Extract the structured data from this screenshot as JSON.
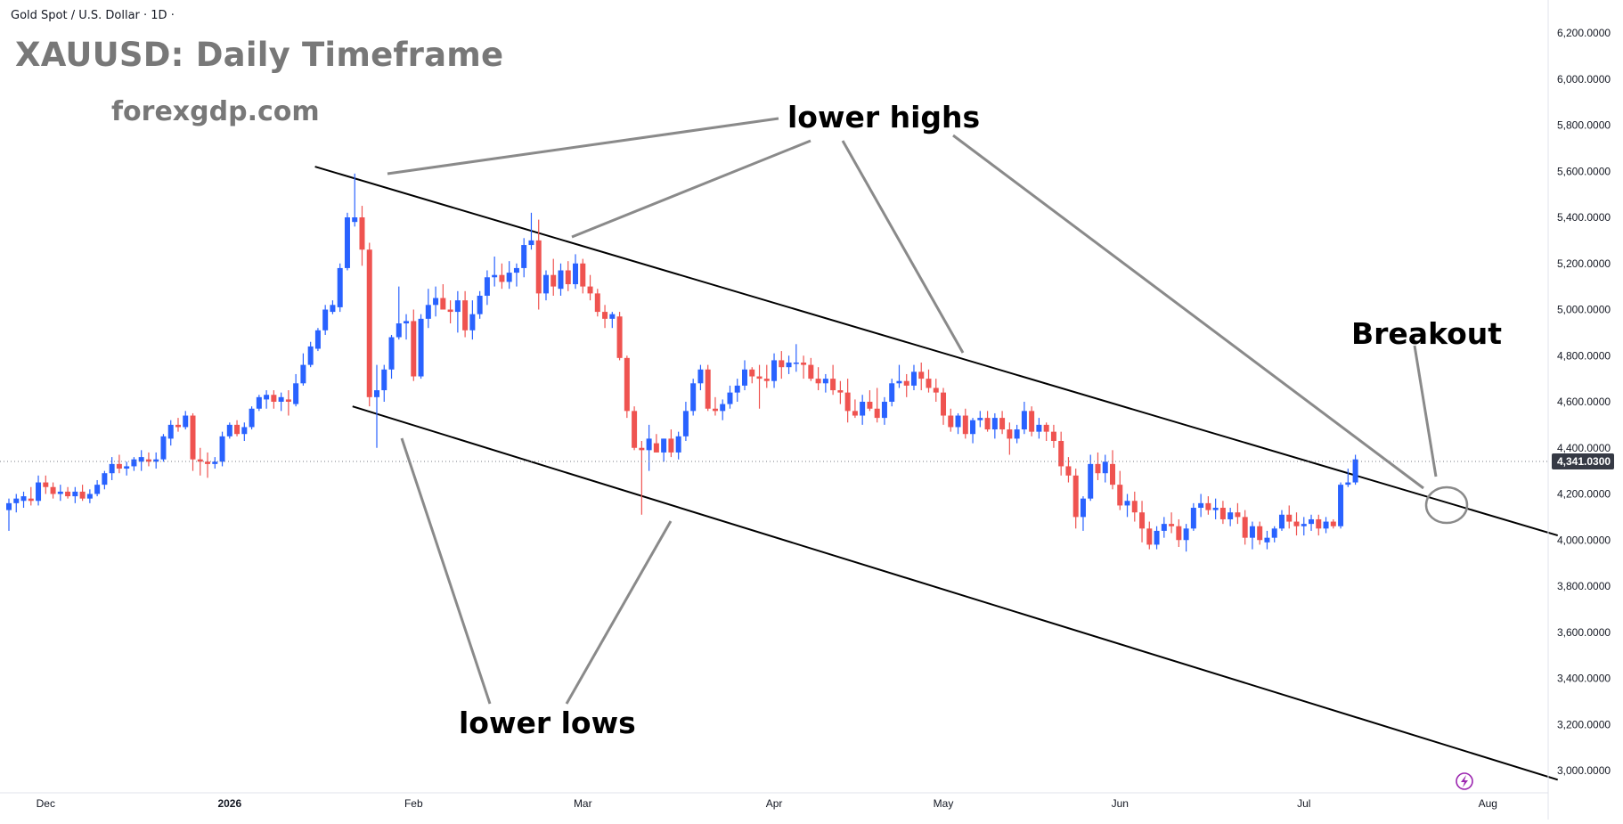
{
  "header": {
    "symbol": "Gold Spot / U.S. Dollar · 1D ·",
    "title": "XAUUSD: Daily Timeframe",
    "site": "forexgdp.com"
  },
  "annotations": {
    "lower_highs": "lower highs",
    "lower_lows": "lower lows",
    "breakout": "Breakout"
  },
  "colors": {
    "up": "#2962ff",
    "down": "#ef5350",
    "trendline": "#000000",
    "arrow": "#8a8a8a",
    "axis_text": "#131722",
    "price_label_bg": "#363a45"
  },
  "chart_data": {
    "type": "candlestick",
    "title": "XAUUSD: Daily Timeframe",
    "ylim": [
      2900,
      6300
    ],
    "y_ticks": [
      "6,200.0000",
      "6,000.0000",
      "5,800.0000",
      "5,600.0000",
      "5,400.0000",
      "5,200.0000",
      "5,000.0000",
      "4,800.0000",
      "4,600.0000",
      "4,400.0000",
      "4,200.0000",
      "4,000.0000",
      "3,800.0000",
      "3,600.0000",
      "3,400.0000",
      "3,200.0000",
      "3,000.0000"
    ],
    "y_tick_values": [
      6200,
      6000,
      5800,
      5600,
      5400,
      5200,
      5000,
      4800,
      4600,
      4400,
      4200,
      4000,
      3800,
      3600,
      3400,
      3200,
      3000
    ],
    "x_ticks": [
      {
        "label": "Dec",
        "index": 5
      },
      {
        "label": "2026",
        "index": 30
      },
      {
        "label": "Feb",
        "index": 55
      },
      {
        "label": "Mar",
        "index": 78
      },
      {
        "label": "Apr",
        "index": 104
      },
      {
        "label": "May",
        "index": 127
      },
      {
        "label": "Jun",
        "index": 151
      },
      {
        "label": "Jul",
        "index": 176
      },
      {
        "label": "Aug",
        "index": 201
      }
    ],
    "last_price": 4341.03,
    "last_price_label": "4,341.0300",
    "grid": false,
    "candles": [
      [
        4130,
        4180,
        4040,
        4160
      ],
      [
        4160,
        4200,
        4120,
        4180
      ],
      [
        4170,
        4210,
        4140,
        4190
      ],
      [
        4180,
        4230,
        4150,
        4170
      ],
      [
        4170,
        4280,
        4150,
        4250
      ],
      [
        4250,
        4280,
        4200,
        4230
      ],
      [
        4230,
        4250,
        4180,
        4200
      ],
      [
        4200,
        4240,
        4170,
        4210
      ],
      [
        4210,
        4230,
        4180,
        4190
      ],
      [
        4190,
        4230,
        4160,
        4210
      ],
      [
        4210,
        4240,
        4170,
        4180
      ],
      [
        4180,
        4220,
        4160,
        4200
      ],
      [
        4200,
        4260,
        4190,
        4240
      ],
      [
        4240,
        4300,
        4220,
        4290
      ],
      [
        4290,
        4360,
        4260,
        4330
      ],
      [
        4330,
        4370,
        4290,
        4310
      ],
      [
        4310,
        4340,
        4280,
        4320
      ],
      [
        4320,
        4360,
        4300,
        4350
      ],
      [
        4340,
        4390,
        4300,
        4360
      ],
      [
        4350,
        4380,
        4320,
        4340
      ],
      [
        4340,
        4380,
        4310,
        4350
      ],
      [
        4350,
        4460,
        4340,
        4450
      ],
      [
        4440,
        4520,
        4410,
        4500
      ],
      [
        4500,
        4530,
        4470,
        4490
      ],
      [
        4490,
        4560,
        4480,
        4540
      ],
      [
        4540,
        4550,
        4300,
        4350
      ],
      [
        4350,
        4400,
        4280,
        4340
      ],
      [
        4340,
        4380,
        4270,
        4330
      ],
      [
        4330,
        4360,
        4310,
        4340
      ],
      [
        4340,
        4470,
        4320,
        4450
      ],
      [
        4450,
        4510,
        4440,
        4500
      ],
      [
        4500,
        4520,
        4450,
        4460
      ],
      [
        4460,
        4510,
        4430,
        4490
      ],
      [
        4490,
        4580,
        4480,
        4570
      ],
      [
        4570,
        4630,
        4560,
        4620
      ],
      [
        4610,
        4650,
        4570,
        4630
      ],
      [
        4630,
        4650,
        4570,
        4600
      ],
      [
        4600,
        4640,
        4560,
        4620
      ],
      [
        4610,
        4650,
        4540,
        4600
      ],
      [
        4590,
        4720,
        4580,
        4680
      ],
      [
        4680,
        4810,
        4670,
        4760
      ],
      [
        4760,
        4860,
        4750,
        4840
      ],
      [
        4830,
        4920,
        4820,
        4910
      ],
      [
        4910,
        5020,
        4890,
        5000
      ],
      [
        4990,
        5040,
        4980,
        5020
      ],
      [
        5010,
        5200,
        4990,
        5180
      ],
      [
        5180,
        5420,
        5170,
        5400
      ],
      [
        5380,
        5590,
        5360,
        5400
      ],
      [
        5400,
        5450,
        5190,
        5260
      ],
      [
        5260,
        5290,
        4580,
        4620
      ],
      [
        4620,
        4760,
        4400,
        4650
      ],
      [
        4650,
        4760,
        4600,
        4740
      ],
      [
        4740,
        4890,
        4700,
        4880
      ],
      [
        4880,
        5100,
        4870,
        4940
      ],
      [
        4940,
        4980,
        4870,
        4950
      ],
      [
        4950,
        5000,
        4690,
        4710
      ],
      [
        4710,
        4980,
        4700,
        4960
      ],
      [
        4960,
        5090,
        4920,
        5020
      ],
      [
        5020,
        5100,
        4970,
        5050
      ],
      [
        5050,
        5110,
        5010,
        5000
      ],
      [
        5000,
        5040,
        4940,
        4990
      ],
      [
        4990,
        5080,
        4900,
        5040
      ],
      [
        5040,
        5080,
        4880,
        4910
      ],
      [
        4910,
        5040,
        4870,
        4980
      ],
      [
        4980,
        5080,
        4960,
        5060
      ],
      [
        5060,
        5170,
        5020,
        5140
      ],
      [
        5140,
        5230,
        5100,
        5150
      ],
      [
        5150,
        5200,
        5090,
        5120
      ],
      [
        5120,
        5210,
        5090,
        5160
      ],
      [
        5160,
        5200,
        5100,
        5180
      ],
      [
        5180,
        5310,
        5140,
        5280
      ],
      [
        5280,
        5420,
        5260,
        5300
      ],
      [
        5300,
        5390,
        5000,
        5070
      ],
      [
        5070,
        5170,
        5040,
        5150
      ],
      [
        5150,
        5220,
        5060,
        5100
      ],
      [
        5090,
        5200,
        5060,
        5170
      ],
      [
        5170,
        5210,
        5080,
        5110
      ],
      [
        5110,
        5240,
        5090,
        5200
      ],
      [
        5200,
        5220,
        5070,
        5100
      ],
      [
        5100,
        5150,
        5040,
        5070
      ],
      [
        5070,
        5090,
        4970,
        4990
      ],
      [
        4990,
        5020,
        4920,
        4960
      ],
      [
        4960,
        4990,
        4920,
        4980
      ],
      [
        4970,
        4990,
        4780,
        4790
      ],
      [
        4790,
        4800,
        4530,
        4560
      ],
      [
        4560,
        4580,
        4390,
        4400
      ],
      [
        4400,
        4430,
        4110,
        4390
      ],
      [
        4390,
        4500,
        4300,
        4440
      ],
      [
        4420,
        4460,
        4380,
        4380
      ],
      [
        4380,
        4440,
        4340,
        4440
      ],
      [
        4440,
        4480,
        4360,
        4380
      ],
      [
        4380,
        4470,
        4350,
        4450
      ],
      [
        4450,
        4600,
        4430,
        4560
      ],
      [
        4560,
        4700,
        4540,
        4680
      ],
      [
        4680,
        4760,
        4650,
        4740
      ],
      [
        4740,
        4760,
        4560,
        4570
      ],
      [
        4570,
        4620,
        4540,
        4560
      ],
      [
        4560,
        4610,
        4520,
        4590
      ],
      [
        4590,
        4670,
        4570,
        4640
      ],
      [
        4640,
        4700,
        4600,
        4670
      ],
      [
        4670,
        4780,
        4650,
        4740
      ],
      [
        4740,
        4750,
        4680,
        4710
      ],
      [
        4710,
        4760,
        4570,
        4700
      ],
      [
        4700,
        4760,
        4660,
        4690
      ],
      [
        4690,
        4810,
        4660,
        4780
      ],
      [
        4780,
        4820,
        4700,
        4750
      ],
      [
        4750,
        4800,
        4720,
        4770
      ],
      [
        4770,
        4850,
        4730,
        4770
      ],
      [
        4770,
        4800,
        4700,
        4760
      ],
      [
        4760,
        4790,
        4690,
        4700
      ],
      [
        4700,
        4750,
        4650,
        4680
      ],
      [
        4680,
        4720,
        4640,
        4700
      ],
      [
        4700,
        4760,
        4630,
        4650
      ],
      [
        4650,
        4690,
        4590,
        4640
      ],
      [
        4640,
        4700,
        4510,
        4560
      ],
      [
        4560,
        4610,
        4530,
        4540
      ],
      [
        4540,
        4630,
        4500,
        4600
      ],
      [
        4600,
        4650,
        4560,
        4570
      ],
      [
        4570,
        4660,
        4510,
        4530
      ],
      [
        4530,
        4620,
        4500,
        4600
      ],
      [
        4600,
        4700,
        4580,
        4680
      ],
      [
        4680,
        4760,
        4660,
        4690
      ],
      [
        4690,
        4720,
        4620,
        4670
      ],
      [
        4670,
        4760,
        4650,
        4730
      ],
      [
        4730,
        4770,
        4650,
        4700
      ],
      [
        4700,
        4740,
        4640,
        4660
      ],
      [
        4660,
        4700,
        4600,
        4640
      ],
      [
        4640,
        4660,
        4500,
        4540
      ],
      [
        4540,
        4570,
        4470,
        4490
      ],
      [
        4490,
        4550,
        4460,
        4540
      ],
      [
        4540,
        4570,
        4440,
        4460
      ],
      [
        4460,
        4530,
        4420,
        4520
      ],
      [
        4520,
        4560,
        4490,
        4530
      ],
      [
        4530,
        4560,
        4470,
        4480
      ],
      [
        4480,
        4550,
        4440,
        4530
      ],
      [
        4530,
        4560,
        4460,
        4480
      ],
      [
        4480,
        4510,
        4370,
        4440
      ],
      [
        4440,
        4500,
        4420,
        4480
      ],
      [
        4480,
        4600,
        4460,
        4560
      ],
      [
        4560,
        4580,
        4450,
        4470
      ],
      [
        4470,
        4530,
        4440,
        4500
      ],
      [
        4500,
        4510,
        4430,
        4470
      ],
      [
        4470,
        4500,
        4400,
        4430
      ],
      [
        4430,
        4470,
        4280,
        4320
      ],
      [
        4320,
        4360,
        4250,
        4280
      ],
      [
        4280,
        4310,
        4050,
        4100
      ],
      [
        4100,
        4190,
        4040,
        4180
      ],
      [
        4180,
        4370,
        4170,
        4330
      ],
      [
        4330,
        4380,
        4260,
        4290
      ],
      [
        4290,
        4370,
        4250,
        4340
      ],
      [
        4330,
        4390,
        4220,
        4240
      ],
      [
        4240,
        4300,
        4130,
        4150
      ],
      [
        4150,
        4200,
        4100,
        4170
      ],
      [
        4170,
        4210,
        4080,
        4120
      ],
      [
        4120,
        4170,
        3990,
        4050
      ],
      [
        4050,
        4080,
        3960,
        3980
      ],
      [
        3980,
        4060,
        3960,
        4040
      ],
      [
        4040,
        4100,
        4010,
        4070
      ],
      [
        4070,
        4120,
        4030,
        4060
      ],
      [
        4060,
        4090,
        3970,
        4000
      ],
      [
        4000,
        4070,
        3950,
        4050
      ],
      [
        4050,
        4160,
        4040,
        4140
      ],
      [
        4140,
        4200,
        4100,
        4160
      ],
      [
        4160,
        4190,
        4110,
        4130
      ],
      [
        4130,
        4180,
        4090,
        4140
      ],
      [
        4140,
        4170,
        4070,
        4090
      ],
      [
        4090,
        4140,
        4060,
        4120
      ],
      [
        4120,
        4160,
        4070,
        4100
      ],
      [
        4100,
        4130,
        3980,
        4010
      ],
      [
        4010,
        4080,
        3960,
        4060
      ],
      [
        4060,
        4080,
        3980,
        4000
      ],
      [
        3990,
        4040,
        3960,
        4010
      ],
      [
        4010,
        4060,
        3990,
        4050
      ],
      [
        4050,
        4130,
        4040,
        4110
      ],
      [
        4110,
        4150,
        4050,
        4080
      ],
      [
        4080,
        4120,
        4020,
        4060
      ],
      [
        4060,
        4100,
        4020,
        4070
      ],
      [
        4070,
        4110,
        4040,
        4090
      ],
      [
        4090,
        4110,
        4020,
        4050
      ],
      [
        4050,
        4100,
        4030,
        4080
      ],
      [
        4080,
        4090,
        4050,
        4060
      ],
      [
        4060,
        4250,
        4050,
        4240
      ],
      [
        4240,
        4310,
        4230,
        4250
      ],
      [
        4250,
        4370,
        4240,
        4350
      ]
    ],
    "trendlines": [
      {
        "name": "upper",
        "start": {
          "index": 41.6,
          "price": 5620
        },
        "end": {
          "index": 210.5,
          "price": 4020
        }
      },
      {
        "name": "lower",
        "start": {
          "index": 46.7,
          "price": 4580
        },
        "end": {
          "index": 210.5,
          "price": 2960
        }
      }
    ]
  }
}
